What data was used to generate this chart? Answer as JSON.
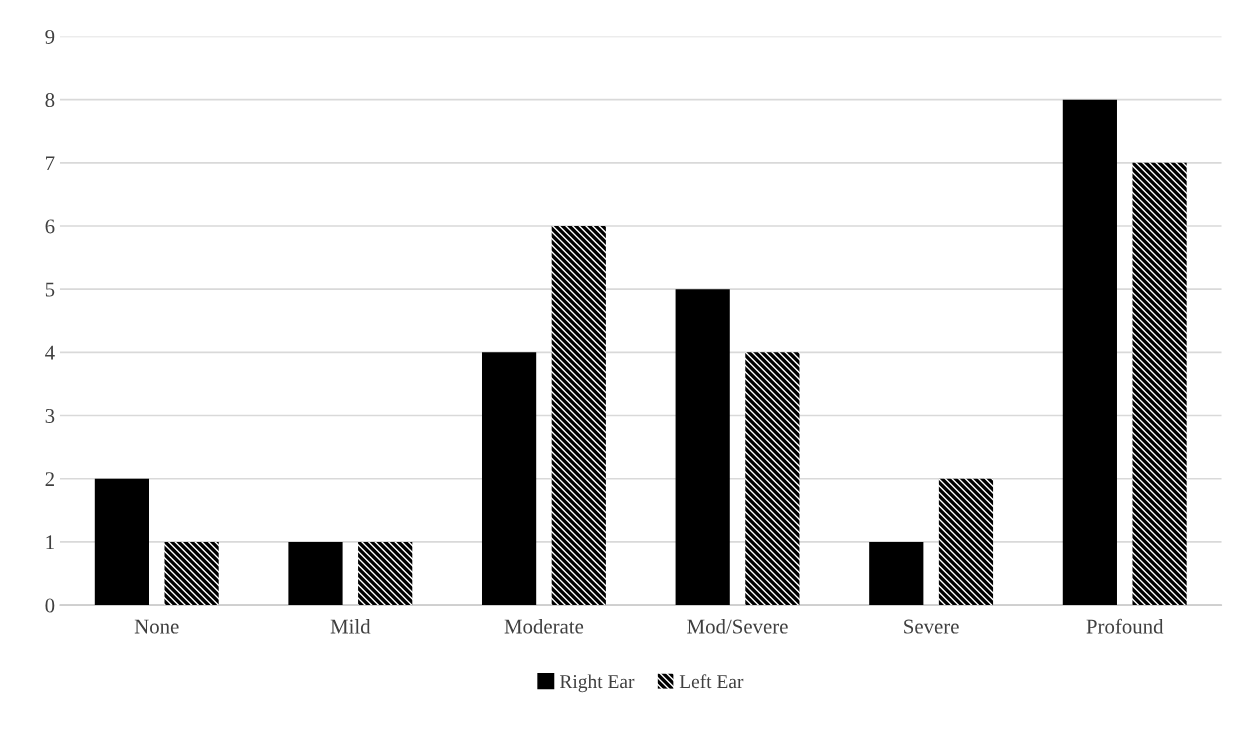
{
  "chart_data": {
    "type": "bar",
    "categories": [
      "None",
      "Mild",
      "Moderate",
      "Mod/Severe",
      "Severe",
      "Profound"
    ],
    "series": [
      {
        "name": "Right Ear",
        "color": "#000000",
        "values": [
          2,
          1,
          4,
          5,
          1,
          8
        ]
      },
      {
        "name": "Left Ear",
        "color": "#000000",
        "values": [
          1,
          1,
          6,
          4,
          2,
          7
        ]
      }
    ],
    "ylim": [
      0,
      9
    ],
    "yticks": [
      0,
      1,
      2,
      3,
      4,
      5,
      6,
      7,
      8,
      9
    ],
    "grid": "y",
    "legend": "bottom"
  }
}
